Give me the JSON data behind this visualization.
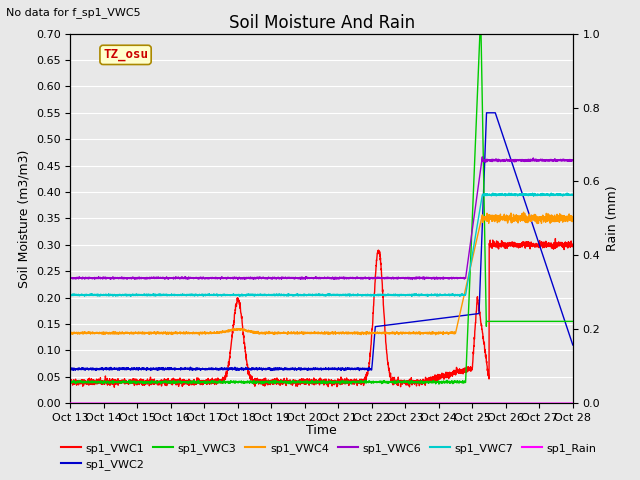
{
  "title": "Soil Moisture And Rain",
  "subtitle": "No data for f_sp1_VWC5",
  "xlabel": "Time",
  "ylabel_left": "Soil Moisture (m3/m3)",
  "ylabel_right": "Rain (mm)",
  "ylim_left": [
    0.0,
    0.7
  ],
  "ylim_right": [
    0.0,
    1.0
  ],
  "yticks_left": [
    0.0,
    0.05,
    0.1,
    0.15,
    0.2,
    0.25,
    0.3,
    0.35,
    0.4,
    0.45,
    0.5,
    0.55,
    0.6,
    0.65,
    0.7
  ],
  "yticks_right": [
    0.0,
    0.2,
    0.4,
    0.6,
    0.8,
    1.0
  ],
  "xtick_labels": [
    "Oct 13",
    "Oct 14",
    "Oct 15",
    "Oct 16",
    "Oct 17",
    "Oct 18",
    "Oct 19",
    "Oct 20",
    "Oct 21",
    "Oct 22",
    "Oct 23",
    "Oct 24",
    "Oct 25",
    "Oct 26",
    "Oct 27",
    "Oct 28"
  ],
  "watermark": "TZ_osu",
  "colors": {
    "sp1_VWC1": "#ff0000",
    "sp1_VWC2": "#0000cc",
    "sp1_VWC3": "#00cc00",
    "sp1_VWC4": "#ff9900",
    "sp1_VWC6": "#9900cc",
    "sp1_VWC7": "#00cccc",
    "sp1_Rain": "#ff00ff"
  },
  "background_color": "#e8e8e8",
  "grid_color": "#ffffff",
  "title_fontsize": 12,
  "label_fontsize": 9,
  "tick_fontsize": 8
}
